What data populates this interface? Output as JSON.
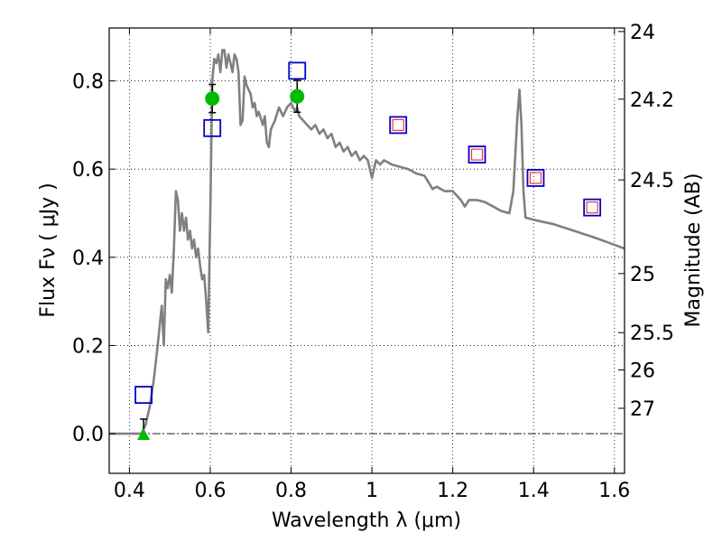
{
  "chart_data": {
    "type": "scatter",
    "xlabel": "Wavelength  λ (μm)",
    "ylabel": "Flux  Fν  ( μJy )",
    "y2label": "Magnitude (AB)",
    "xlim": [
      0.35,
      1.625
    ],
    "ylim": [
      -0.09,
      0.92
    ],
    "x_ticks": [
      0.4,
      0.6,
      0.8,
      1.0,
      1.2,
      1.4,
      1.6
    ],
    "x_tick_labels": [
      "0.4",
      "0.6",
      "0.8",
      "1",
      "1.2",
      "1.4",
      "1.6"
    ],
    "y_ticks": [
      0.0,
      0.2,
      0.4,
      0.6,
      0.8
    ],
    "y_tick_labels": [
      "0.0",
      "0.2",
      "0.4",
      "0.6",
      "0.8"
    ],
    "y2_ticks": [
      {
        "mag": 24,
        "label": "24"
      },
      {
        "mag": 24.2,
        "label": "24.2"
      },
      {
        "mag": 24.5,
        "label": "24.5"
      },
      {
        "mag": 25,
        "label": "25"
      },
      {
        "mag": 25.5,
        "label": "25.5"
      },
      {
        "mag": 26,
        "label": "26"
      },
      {
        "mag": 27,
        "label": "27"
      }
    ],
    "grid": true,
    "zero_line": true,
    "colors": {
      "model": "#808080",
      "observed": "#00bb00",
      "model_photometry": "#0000cc",
      "inner_box": "#ff3333",
      "errorbar": "#000000"
    },
    "series": [
      {
        "type": "line",
        "points": [
          [
            0.35,
            0.0
          ],
          [
            0.43,
            0.0
          ],
          [
            0.44,
            0.02
          ],
          [
            0.45,
            0.06
          ],
          [
            0.46,
            0.12
          ],
          [
            0.47,
            0.2
          ],
          [
            0.48,
            0.29
          ],
          [
            0.485,
            0.2
          ],
          [
            0.49,
            0.35
          ],
          [
            0.495,
            0.33
          ],
          [
            0.5,
            0.36
          ],
          [
            0.505,
            0.32
          ],
          [
            0.51,
            0.42
          ],
          [
            0.515,
            0.55
          ],
          [
            0.52,
            0.53
          ],
          [
            0.525,
            0.46
          ],
          [
            0.53,
            0.5
          ],
          [
            0.535,
            0.46
          ],
          [
            0.54,
            0.49
          ],
          [
            0.545,
            0.44
          ],
          [
            0.55,
            0.46
          ],
          [
            0.555,
            0.42
          ],
          [
            0.56,
            0.44
          ],
          [
            0.565,
            0.4
          ],
          [
            0.57,
            0.42
          ],
          [
            0.575,
            0.38
          ],
          [
            0.58,
            0.35
          ],
          [
            0.585,
            0.36
          ],
          [
            0.59,
            0.3
          ],
          [
            0.595,
            0.23
          ],
          [
            0.6,
            0.5
          ],
          [
            0.605,
            0.8
          ],
          [
            0.61,
            0.85
          ],
          [
            0.615,
            0.84
          ],
          [
            0.62,
            0.86
          ],
          [
            0.625,
            0.82
          ],
          [
            0.63,
            0.87
          ],
          [
            0.635,
            0.87
          ],
          [
            0.64,
            0.83
          ],
          [
            0.645,
            0.86
          ],
          [
            0.65,
            0.84
          ],
          [
            0.655,
            0.82
          ],
          [
            0.66,
            0.86
          ],
          [
            0.665,
            0.85
          ],
          [
            0.67,
            0.82
          ],
          [
            0.675,
            0.7
          ],
          [
            0.68,
            0.71
          ],
          [
            0.685,
            0.81
          ],
          [
            0.69,
            0.79
          ],
          [
            0.7,
            0.77
          ],
          [
            0.705,
            0.74
          ],
          [
            0.71,
            0.75
          ],
          [
            0.715,
            0.72
          ],
          [
            0.72,
            0.73
          ],
          [
            0.73,
            0.7
          ],
          [
            0.735,
            0.72
          ],
          [
            0.74,
            0.66
          ],
          [
            0.745,
            0.65
          ],
          [
            0.75,
            0.69
          ],
          [
            0.76,
            0.71
          ],
          [
            0.77,
            0.74
          ],
          [
            0.78,
            0.72
          ],
          [
            0.79,
            0.74
          ],
          [
            0.8,
            0.75
          ],
          [
            0.81,
            0.73
          ],
          [
            0.815,
            0.74
          ],
          [
            0.82,
            0.72
          ],
          [
            0.83,
            0.71
          ],
          [
            0.84,
            0.7
          ],
          [
            0.85,
            0.69
          ],
          [
            0.86,
            0.7
          ],
          [
            0.87,
            0.68
          ],
          [
            0.88,
            0.69
          ],
          [
            0.89,
            0.67
          ],
          [
            0.9,
            0.68
          ],
          [
            0.91,
            0.65
          ],
          [
            0.92,
            0.66
          ],
          [
            0.93,
            0.64
          ],
          [
            0.94,
            0.65
          ],
          [
            0.95,
            0.63
          ],
          [
            0.96,
            0.64
          ],
          [
            0.97,
            0.62
          ],
          [
            0.98,
            0.63
          ],
          [
            0.99,
            0.62
          ],
          [
            1.0,
            0.58
          ],
          [
            1.01,
            0.62
          ],
          [
            1.02,
            0.61
          ],
          [
            1.03,
            0.62
          ],
          [
            1.05,
            0.61
          ],
          [
            1.07,
            0.605
          ],
          [
            1.09,
            0.6
          ],
          [
            1.11,
            0.59
          ],
          [
            1.13,
            0.585
          ],
          [
            1.14,
            0.57
          ],
          [
            1.15,
            0.555
          ],
          [
            1.16,
            0.56
          ],
          [
            1.18,
            0.55
          ],
          [
            1.2,
            0.55
          ],
          [
            1.22,
            0.53
          ],
          [
            1.23,
            0.515
          ],
          [
            1.24,
            0.53
          ],
          [
            1.26,
            0.53
          ],
          [
            1.28,
            0.525
          ],
          [
            1.3,
            0.515
          ],
          [
            1.32,
            0.505
          ],
          [
            1.34,
            0.5
          ],
          [
            1.35,
            0.55
          ],
          [
            1.36,
            0.72
          ],
          [
            1.365,
            0.78
          ],
          [
            1.37,
            0.7
          ],
          [
            1.375,
            0.55
          ],
          [
            1.38,
            0.49
          ],
          [
            1.4,
            0.485
          ],
          [
            1.45,
            0.475
          ],
          [
            1.5,
            0.46
          ],
          [
            1.55,
            0.445
          ],
          [
            1.58,
            0.435
          ],
          [
            1.625,
            0.42
          ]
        ]
      },
      {
        "type": "scatter",
        "marker": "circle",
        "points": [
          {
            "x": 0.605,
            "y": 0.76,
            "err": 0.032
          },
          {
            "x": 0.815,
            "y": 0.765,
            "err": 0.036
          }
        ]
      },
      {
        "type": "scatter",
        "marker": "triangle",
        "points": [
          {
            "x": 0.435,
            "y": -0.002,
            "err_high": 0.035
          }
        ]
      },
      {
        "type": "scatter",
        "marker": "open-square",
        "points": [
          {
            "x": 0.435,
            "y": 0.088
          },
          {
            "x": 0.605,
            "y": 0.693
          },
          {
            "x": 0.815,
            "y": 0.823
          },
          {
            "x": 1.065,
            "y": 0.7
          },
          {
            "x": 1.26,
            "y": 0.633
          },
          {
            "x": 1.405,
            "y": 0.58
          },
          {
            "x": 1.545,
            "y": 0.513
          }
        ]
      },
      {
        "type": "scatter",
        "marker": "small-open-square",
        "points": [
          {
            "x": 1.065,
            "y": 0.7
          },
          {
            "x": 1.26,
            "y": 0.633
          },
          {
            "x": 1.405,
            "y": 0.58
          },
          {
            "x": 1.545,
            "y": 0.513
          }
        ]
      }
    ]
  }
}
